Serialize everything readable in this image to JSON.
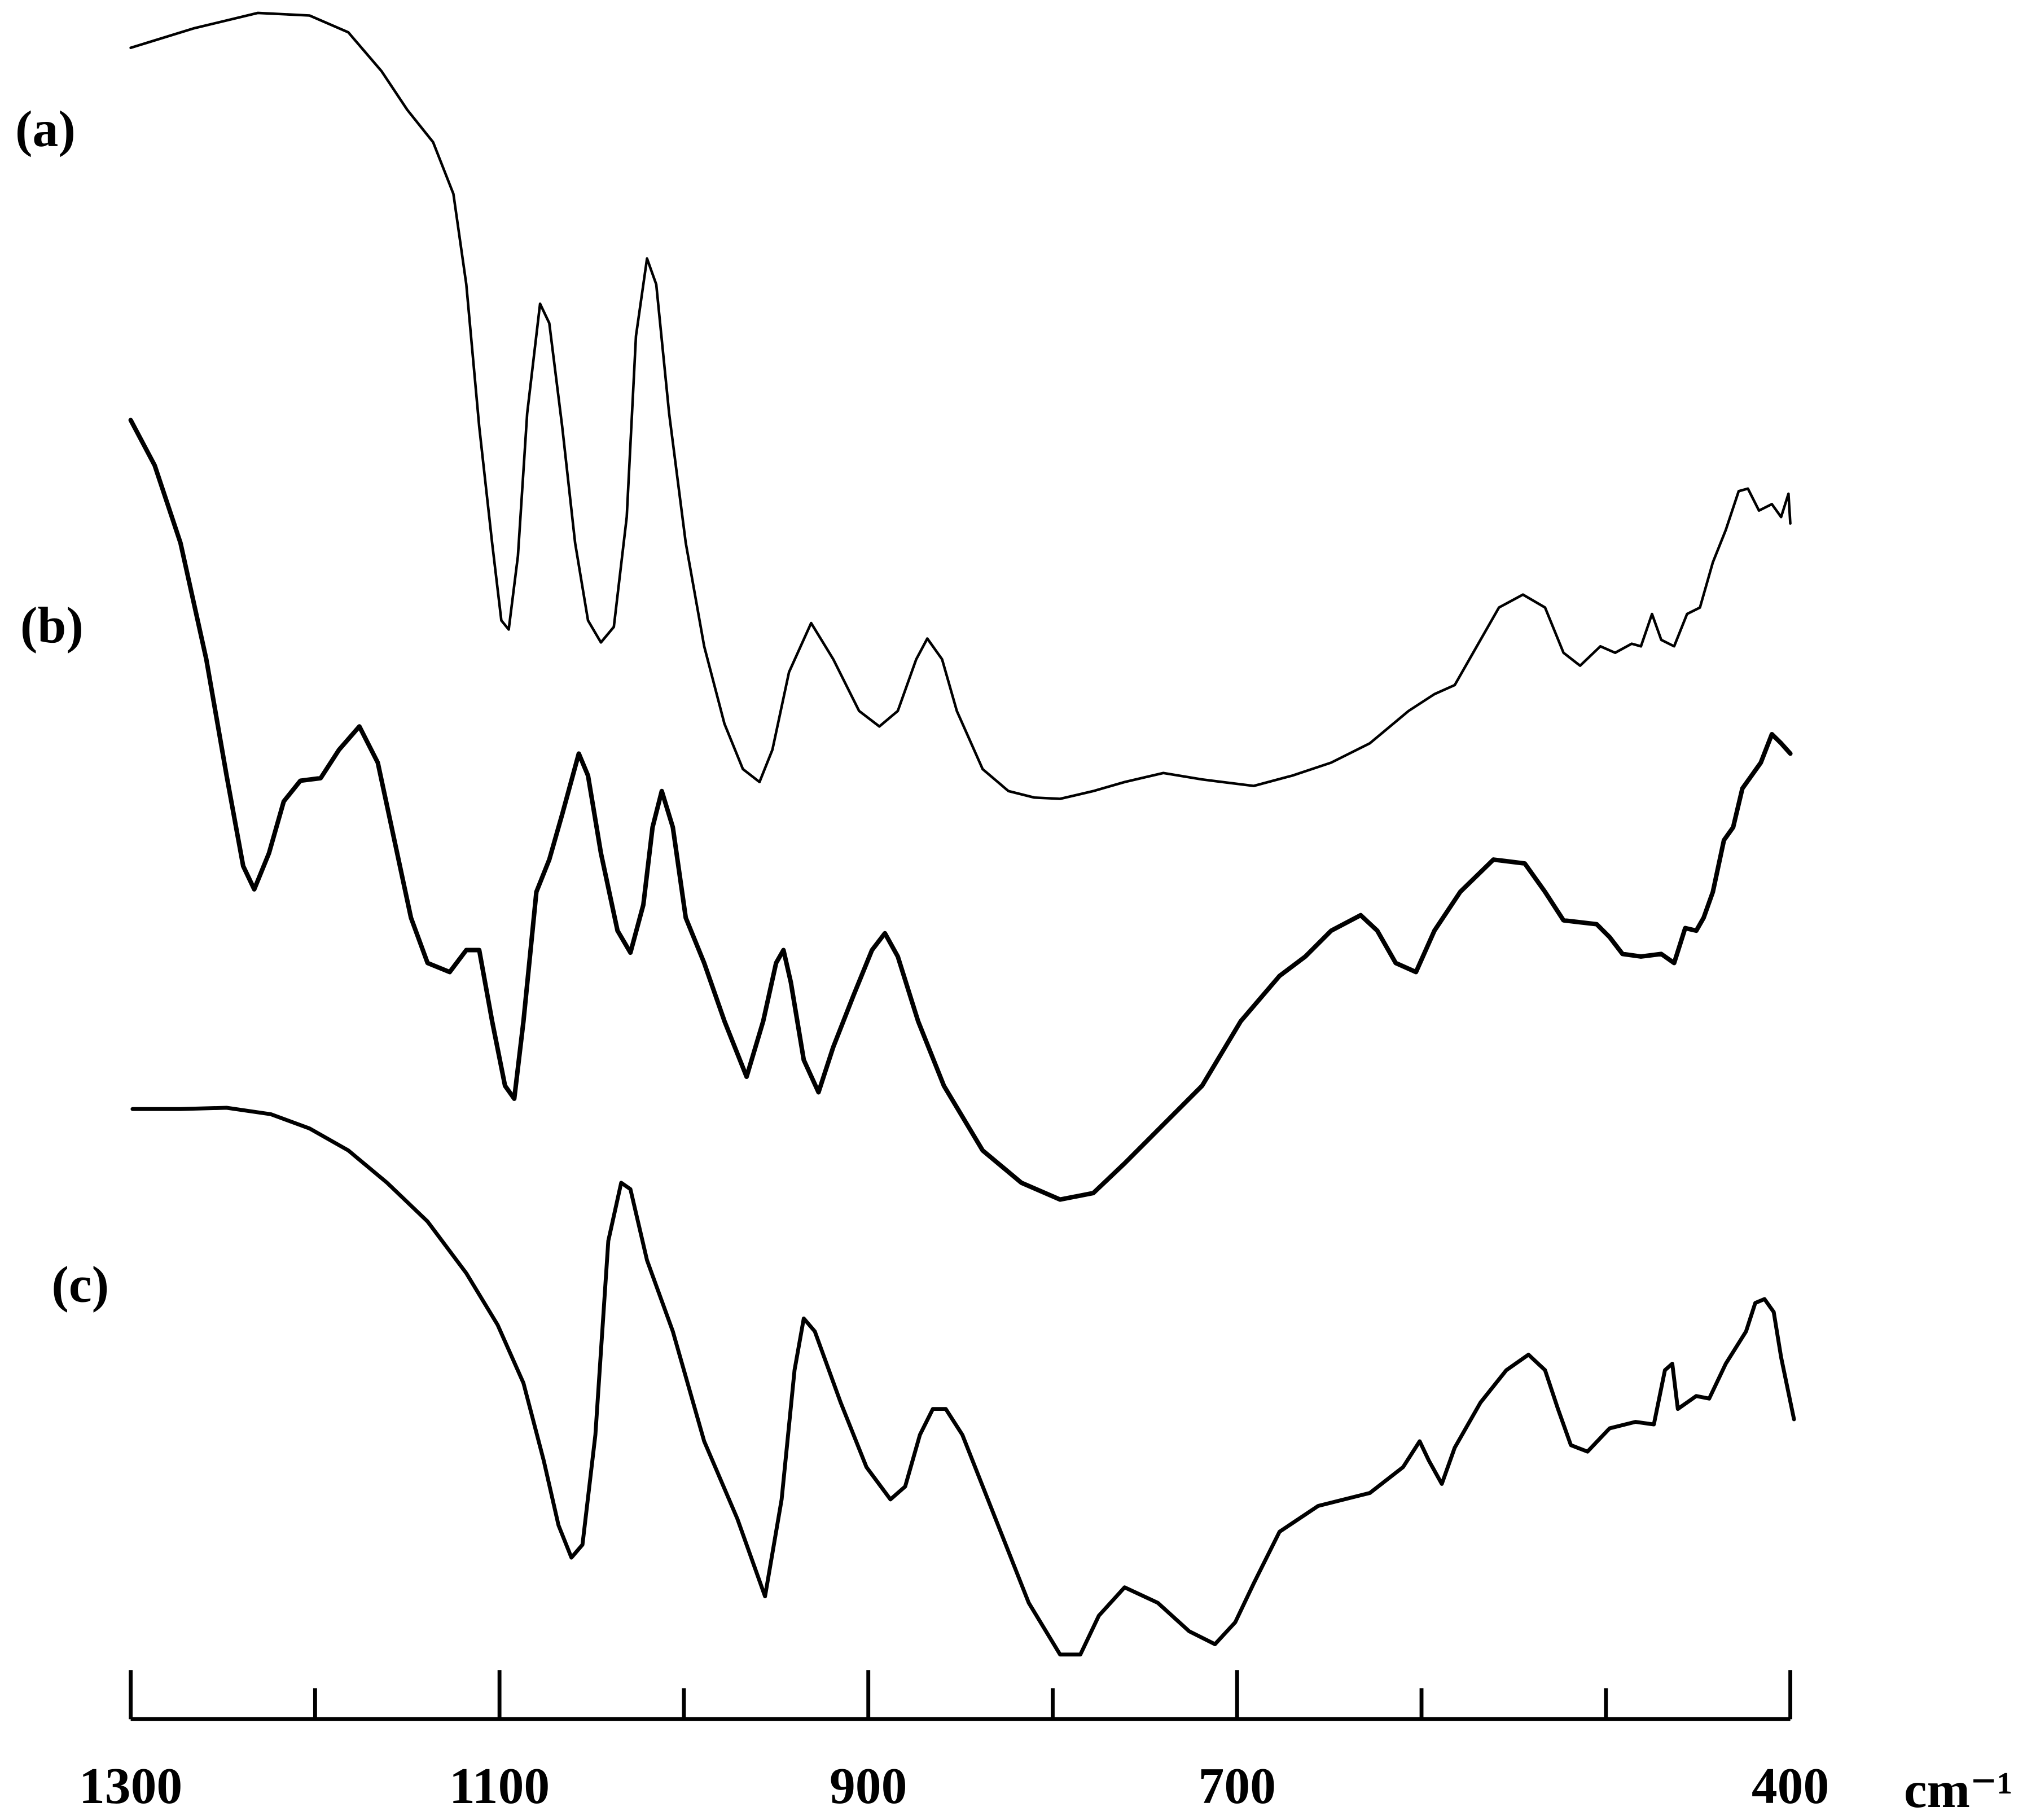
{
  "chart_data": {
    "type": "line",
    "xlabel": "cm⁻¹",
    "xlim": [
      1300,
      400
    ],
    "ylim": [
      0,
      129.5
    ],
    "xticks": [
      1300,
      1100,
      900,
      700,
      400
    ],
    "xminorticks": [
      1200,
      1000,
      800,
      600,
      500
    ],
    "series": [
      {
        "name": "(a)",
        "color": "#000000",
        "x": [
          1300,
          1266,
          1231,
          1203,
          1182,
          1164,
          1150,
          1136,
          1125,
          1118,
          1111,
          1104,
          1099,
          1095,
          1090,
          1085,
          1078,
          1073,
          1066,
          1059,
          1052,
          1045,
          1038,
          1031,
          1026,
          1020,
          1015,
          1008,
          999,
          989,
          978,
          968,
          959,
          952,
          943,
          931,
          919,
          905,
          894,
          884,
          874,
          868,
          860,
          852,
          838,
          824,
          810,
          796,
          778,
          761,
          740,
          719,
          691,
          670,
          649,
          628,
          607,
          593,
          582,
          572,
          558,
          545,
          533,
          523,
          514,
          503,
          495,
          486,
          481,
          475,
          470,
          463,
          456,
          449,
          442,
          435,
          428,
          423,
          417,
          410,
          405,
          401,
          400
        ],
        "values": [
          125.8,
          127.3,
          128.5,
          128.3,
          127,
          124,
          121,
          118.5,
          114.5,
          107.5,
          96.5,
          87.5,
          81.5,
          80.8,
          86.5,
          97.5,
          106,
          104.5,
          96.5,
          87.5,
          81.5,
          79.8,
          81,
          89.5,
          103.5,
          109.5,
          107.5,
          97.5,
          87.5,
          79.5,
          73.5,
          70,
          69,
          71.5,
          77.5,
          81.3,
          78.5,
          74.5,
          73.3,
          74.5,
          78.5,
          80.1,
          78.5,
          74.5,
          70,
          68.3,
          67.8,
          67.7,
          68.3,
          69,
          69.7,
          69.2,
          68.7,
          69.5,
          70.5,
          72,
          74.5,
          75.8,
          76.5,
          79,
          82.5,
          83.5,
          82.5,
          79,
          78,
          79.5,
          79,
          79.7,
          79.5,
          82,
          80,
          79.5,
          82,
          82.5,
          86,
          88.5,
          91.5,
          91.7,
          90,
          90.5,
          89.5,
          91.3,
          89
        ]
      },
      {
        "name": "(b)",
        "color": "#000000",
        "x": [
          1300,
          1287,
          1273,
          1259,
          1248,
          1239,
          1233,
          1225,
          1217,
          1208,
          1197,
          1187,
          1176,
          1166,
          1157,
          1148,
          1139,
          1127,
          1118,
          1111,
          1104,
          1097,
          1092,
          1087,
          1080,
          1073,
          1066,
          1057,
          1052,
          1045,
          1036,
          1029,
          1022,
          1017,
          1012,
          1006,
          999,
          989,
          978,
          966,
          957,
          950,
          946,
          942,
          935,
          927,
          919,
          908,
          898,
          891,
          884,
          873,
          859,
          838,
          817,
          796,
          778,
          761,
          740,
          719,
          698,
          677,
          663,
          649,
          633,
          624,
          614,
          603,
          593,
          579,
          561,
          544,
          533,
          523,
          505,
          498,
          491,
          481,
          470,
          463,
          457,
          451,
          447,
          442,
          436,
          431,
          426,
          421,
          416,
          410,
          405,
          400
        ],
        "values": [
          97,
          93.5,
          87.5,
          78.5,
          69.5,
          62.5,
          60.7,
          63.5,
          67.5,
          69.1,
          69.3,
          71.5,
          73.3,
          70.5,
          64.5,
          58.5,
          55,
          54.3,
          56,
          56,
          50.5,
          45.5,
          44.5,
          50.5,
          60.5,
          63,
          66.5,
          71.2,
          69.5,
          63.5,
          57.5,
          55.8,
          59.5,
          65.5,
          68.3,
          65.5,
          58.5,
          55,
          50.5,
          46.2,
          50.5,
          55,
          56,
          53.5,
          47.5,
          45,
          48.5,
          52.5,
          56,
          57.3,
          55.5,
          50.5,
          45.5,
          40.5,
          38,
          36.7,
          37.2,
          39.5,
          42.5,
          45.5,
          50.5,
          54,
          55.5,
          57.5,
          58.7,
          57.5,
          55,
          54.3,
          57.5,
          60.5,
          63,
          62.7,
          60.5,
          58.3,
          58,
          57,
          55.7,
          55.5,
          55.7,
          55,
          57.7,
          57.5,
          58.5,
          60.5,
          64.5,
          65.5,
          68.5,
          69.5,
          70.5,
          72.7,
          72,
          71.2
        ]
      },
      {
        "name": "(c)",
        "color": "#000000",
        "x": [
          1299,
          1273,
          1248,
          1224,
          1203,
          1182,
          1161,
          1139,
          1118,
          1101,
          1087,
          1076,
          1068,
          1061,
          1055,
          1048,
          1041,
          1034,
          1029,
          1020,
          1006,
          989,
          971,
          956,
          947,
          940,
          935,
          929,
          915,
          901,
          888,
          880,
          872,
          865,
          858,
          849,
          831,
          813,
          796,
          785,
          775,
          761,
          743,
          726,
          712,
          701,
          691,
          677,
          656,
          628,
          610,
          601,
          596,
          589,
          582,
          568,
          554,
          542,
          533,
          526,
          519,
          510,
          498,
          484,
          474,
          468,
          464,
          461,
          456,
          451,
          444,
          435,
          424,
          419,
          414,
          409,
          405,
          398
        ],
        "values": [
          43.7,
          43.7,
          43.8,
          43.3,
          42.2,
          40.5,
          38,
          35,
          31,
          27,
          22.5,
          16.5,
          11.5,
          9,
          10,
          18.5,
          33.5,
          38,
          37.5,
          32,
          26.5,
          18,
          12,
          6,
          13.5,
          23.5,
          27.5,
          26.5,
          21,
          16,
          13.5,
          14.5,
          18.5,
          20.5,
          20.5,
          18.5,
          12,
          5.5,
          1.5,
          1.5,
          4.5,
          6.7,
          5.5,
          3.3,
          2.3,
          4,
          7,
          11,
          13,
          14,
          16,
          18,
          16.5,
          14.7,
          17.5,
          21,
          23.5,
          24.7,
          23.5,
          20.5,
          17.7,
          17.2,
          19,
          19.5,
          19.3,
          23.5,
          24,
          20.5,
          21,
          21.5,
          21.3,
          24,
          26.5,
          28.7,
          29,
          28,
          24.5,
          19.7
        ]
      }
    ]
  }
}
